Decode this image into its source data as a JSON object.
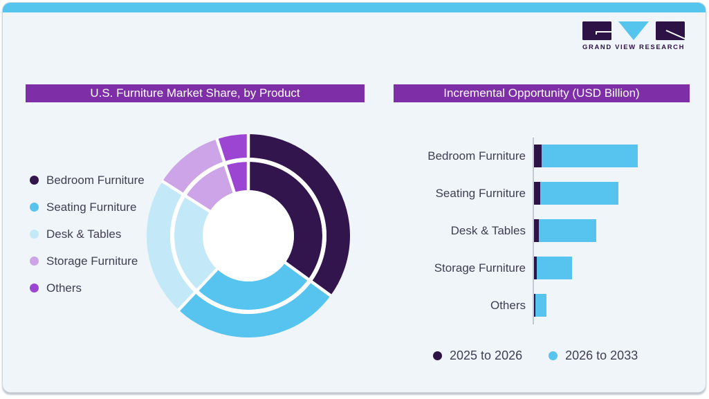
{
  "logo": {
    "text": "GRAND VIEW RESEARCH",
    "mark_dark_color": "#2d1245",
    "mark_blue_color": "#56c5ee"
  },
  "theme": {
    "card_background": "#eff5f9",
    "top_strip_color": "#56c5ee",
    "title_bar_color": "#7e2fa8",
    "text_color": "#3f3e52",
    "axis_color": "#c3c9d3"
  },
  "chart_data": [
    {
      "type": "pie",
      "subtype": "double-ring-donut",
      "title": "U.S. Furniture Market Share, by Product",
      "categories": [
        "Bedroom Furniture",
        "Seating Furniture",
        "Desk & Tables",
        "Storage Furniture",
        "Others"
      ],
      "colors": [
        "#33154e",
        "#57c4f0",
        "#c3e8f8",
        "#cda4e7",
        "#9c45d2"
      ],
      "rings": [
        {
          "name": "outer",
          "values": [
            35,
            27,
            22,
            11,
            5
          ]
        },
        {
          "name": "inner",
          "values": [
            35,
            27,
            22,
            11,
            5
          ]
        }
      ],
      "value_unit": "percent (estimated from arc angles; no data labels shown)",
      "legend_position": "left",
      "start_angle": "12 o'clock, clockwise"
    },
    {
      "type": "bar",
      "orientation": "horizontal",
      "stacked": true,
      "title": "Incremental Opportunity (USD Billion)",
      "categories": [
        "Bedroom Furniture",
        "Seating Furniture",
        "Desk & Tables",
        "Storage Furniture",
        "Others"
      ],
      "series": [
        {
          "name": "2025 to 2026",
          "color": "#2d1245",
          "values": [
            11,
            9,
            7,
            4,
            2
          ]
        },
        {
          "name": "2026 to 2033",
          "color": "#57c4f0",
          "values": [
            139,
            113,
            83,
            51,
            16
          ]
        }
      ],
      "value_unit": "relative length (axis has no tick labels in image)",
      "legend_position": "bottom",
      "grid": false
    }
  ]
}
